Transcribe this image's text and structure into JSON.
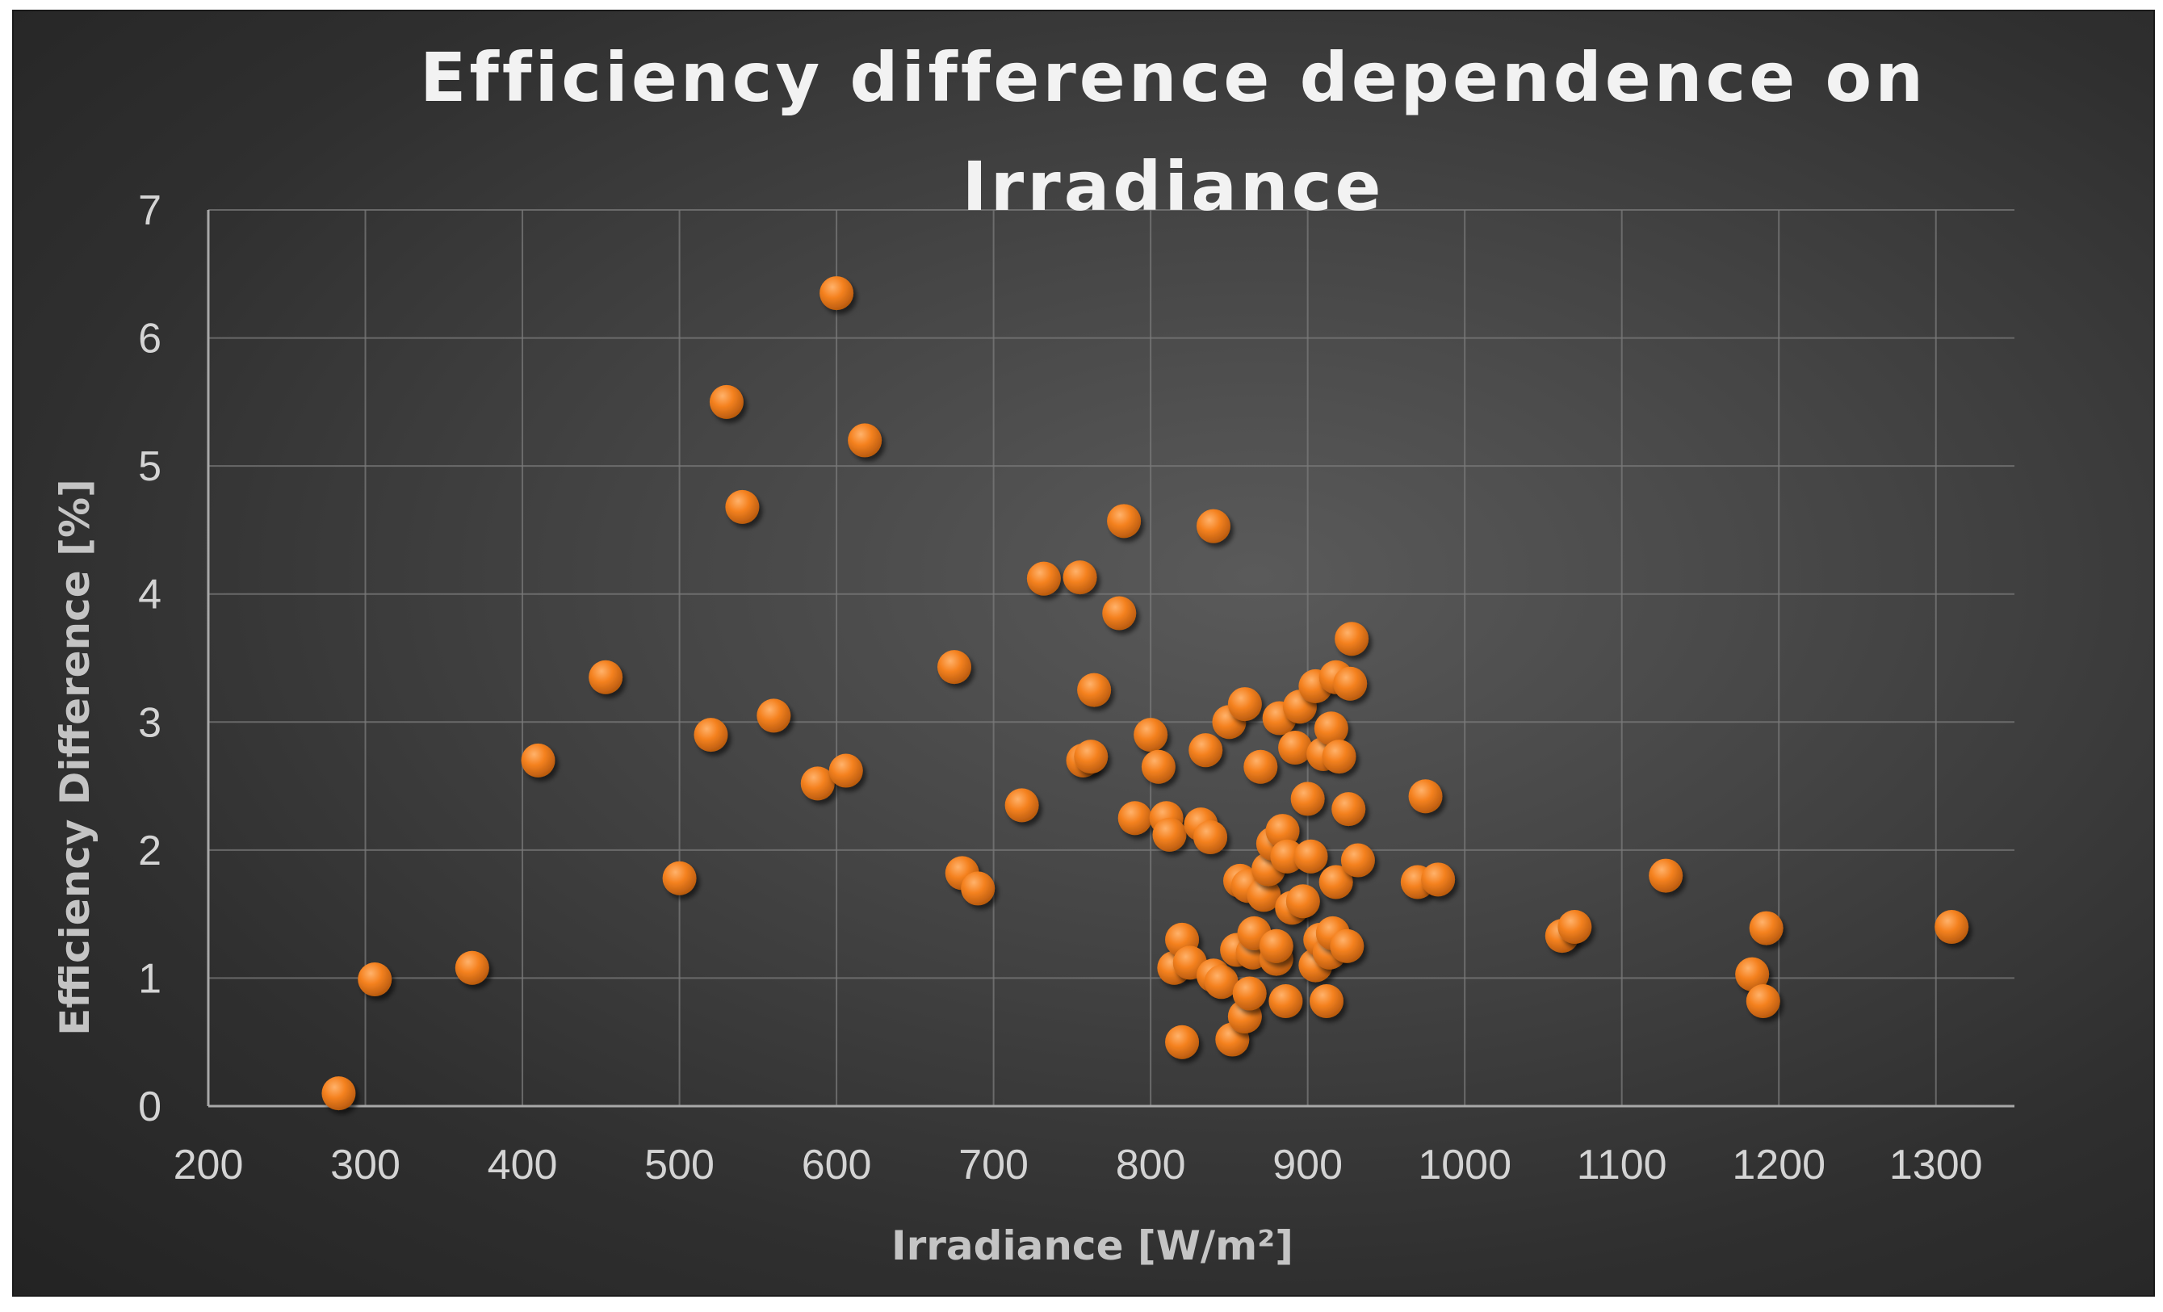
{
  "chart_data": {
    "type": "scatter",
    "title_lines": [
      "Efficiency difference dependence on",
      "Irradiance"
    ],
    "xlabel": "Irradiance [W/m²]",
    "ylabel": "Efficiency Difference [%]",
    "xlim": [
      200,
      1350
    ],
    "ylim": [
      0,
      7
    ],
    "xticks": [
      "200",
      "300",
      "400",
      "500",
      "600",
      "700",
      "800",
      "900",
      "1000",
      "1100",
      "1200",
      "1300"
    ],
    "yticks": [
      "0",
      "1",
      "2",
      "3",
      "4",
      "5",
      "6",
      "7"
    ],
    "grid": true,
    "legend": "none",
    "marker_color": "#f58220",
    "series": [
      {
        "name": "Efficiency Difference",
        "points": [
          [
            283,
            0.1
          ],
          [
            306,
            0.99
          ],
          [
            368,
            1.08
          ],
          [
            410,
            2.7
          ],
          [
            453,
            3.35
          ],
          [
            500,
            1.78
          ],
          [
            520,
            2.9
          ],
          [
            530,
            5.5
          ],
          [
            540,
            4.68
          ],
          [
            560,
            3.05
          ],
          [
            588,
            2.52
          ],
          [
            600,
            6.35
          ],
          [
            606,
            2.62
          ],
          [
            618,
            5.2
          ],
          [
            675,
            3.43
          ],
          [
            680,
            1.82
          ],
          [
            690,
            1.7
          ],
          [
            718,
            2.35
          ],
          [
            732,
            4.12
          ],
          [
            755,
            4.13
          ],
          [
            757,
            2.7
          ],
          [
            762,
            2.73
          ],
          [
            764,
            3.25
          ],
          [
            780,
            3.85
          ],
          [
            783,
            4.57
          ],
          [
            790,
            2.25
          ],
          [
            800,
            2.9
          ],
          [
            805,
            2.65
          ],
          [
            810,
            2.25
          ],
          [
            812,
            2.12
          ],
          [
            815,
            1.08
          ],
          [
            820,
            1.3
          ],
          [
            820,
            0.5
          ],
          [
            825,
            1.12
          ],
          [
            832,
            2.2
          ],
          [
            835,
            2.78
          ],
          [
            838,
            2.1
          ],
          [
            840,
            4.53
          ],
          [
            840,
            1.02
          ],
          [
            845,
            0.97
          ],
          [
            850,
            3.0
          ],
          [
            852,
            0.52
          ],
          [
            855,
            1.22
          ],
          [
            857,
            1.76
          ],
          [
            860,
            0.7
          ],
          [
            860,
            3.14
          ],
          [
            862,
            1.72
          ],
          [
            863,
            0.88
          ],
          [
            865,
            1.2
          ],
          [
            866,
            1.35
          ],
          [
            870,
            2.65
          ],
          [
            872,
            1.65
          ],
          [
            875,
            1.85
          ],
          [
            878,
            2.05
          ],
          [
            880,
            1.15
          ],
          [
            880,
            1.25
          ],
          [
            882,
            3.03
          ],
          [
            884,
            2.15
          ],
          [
            886,
            0.82
          ],
          [
            887,
            1.95
          ],
          [
            890,
            1.55
          ],
          [
            892,
            2.8
          ],
          [
            895,
            3.12
          ],
          [
            897,
            1.6
          ],
          [
            900,
            2.4
          ],
          [
            902,
            1.95
          ],
          [
            905,
            1.1
          ],
          [
            905,
            3.28
          ],
          [
            908,
            1.3
          ],
          [
            910,
            2.75
          ],
          [
            912,
            0.82
          ],
          [
            914,
            1.2
          ],
          [
            915,
            2.95
          ],
          [
            916,
            1.35
          ],
          [
            918,
            3.35
          ],
          [
            918,
            1.75
          ],
          [
            920,
            2.73
          ],
          [
            925,
            1.25
          ],
          [
            926,
            2.32
          ],
          [
            927,
            3.3
          ],
          [
            928,
            3.65
          ],
          [
            932,
            1.92
          ],
          [
            970,
            1.75
          ],
          [
            975,
            2.42
          ],
          [
            983,
            1.77
          ],
          [
            1062,
            1.33
          ],
          [
            1070,
            1.4
          ],
          [
            1128,
            1.8
          ],
          [
            1183,
            1.03
          ],
          [
            1190,
            0.82
          ],
          [
            1192,
            1.39
          ],
          [
            1310,
            1.4
          ]
        ]
      }
    ]
  }
}
